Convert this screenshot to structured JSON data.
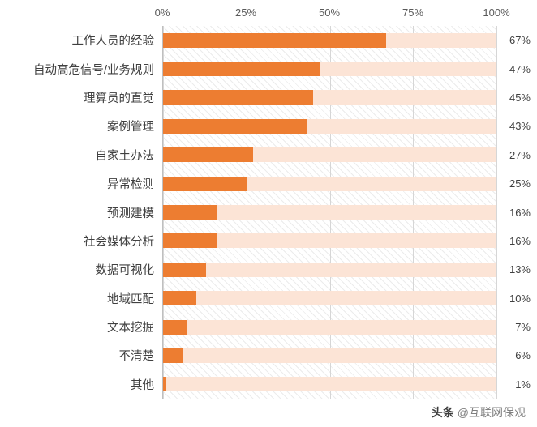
{
  "chart_data": {
    "type": "bar",
    "orientation": "horizontal",
    "title": "",
    "xlabel": "",
    "ylabel": "",
    "xlim": [
      0,
      100
    ],
    "grid": true,
    "x_ticks": [
      "0%",
      "25%",
      "50%",
      "75%",
      "100%"
    ],
    "x_tick_positions": [
      0,
      25,
      50,
      75,
      100
    ],
    "categories": [
      "工作人员的经验",
      "自动高危信号/业务规则",
      "理算员的直觉",
      "案例管理",
      "自家土办法",
      "异常检测",
      "预测建模",
      "社会媒体分析",
      "数据可视化",
      "地域匹配",
      "文本挖掘",
      "不清楚",
      "其他"
    ],
    "values": [
      67,
      47,
      45,
      43,
      27,
      25,
      16,
      16,
      13,
      10,
      7,
      6,
      1
    ],
    "value_labels": [
      "67%",
      "47%",
      "45%",
      "43%",
      "27%",
      "25%",
      "16%",
      "16%",
      "13%",
      "10%",
      "7%",
      "6%",
      "1%"
    ],
    "bar_color": "#ED7D31",
    "track_color": "#FCE4D6",
    "track_max": 100
  },
  "watermark": {
    "brand": "头条",
    "handle": "@互联网保观"
  }
}
